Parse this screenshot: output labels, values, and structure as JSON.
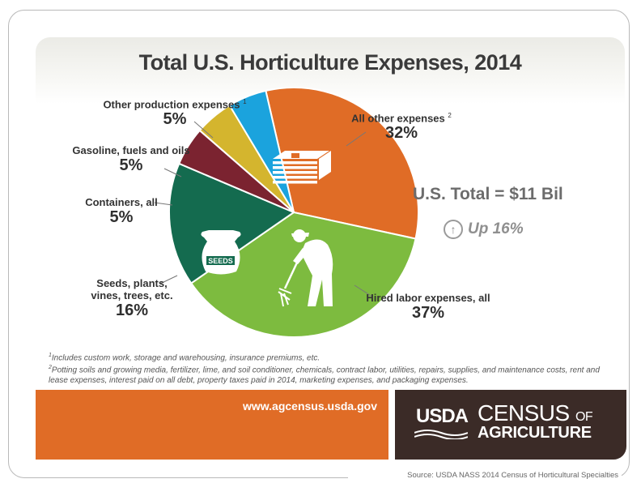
{
  "title": "Total U.S. Horticulture Expenses, 2014",
  "total_label": "U.S. Total = $11 Bil",
  "change_label": "Up 16%",
  "change_icon": "up-arrow-circle-icon",
  "chart_data": {
    "type": "pie",
    "title": "Total U.S. Horticulture Expenses, 2014",
    "slices": [
      {
        "label": "All other expenses",
        "note": "2",
        "value": 32,
        "value_label": "32%",
        "color": "#e06c26"
      },
      {
        "label": "Hired labor expenses, all",
        "note": "",
        "value": 37,
        "value_label": "37%",
        "color": "#7dbb3f"
      },
      {
        "label": "Seeds, plants, vines, trees, etc.",
        "note": "",
        "value": 16,
        "value_label": "16%",
        "color": "#146b4f"
      },
      {
        "label": "Containers, all",
        "note": "",
        "value": 5,
        "value_label": "5%",
        "color": "#7b2330"
      },
      {
        "label": "Gasoline, fuels and oils",
        "note": "",
        "value": 5,
        "value_label": "5%",
        "color": "#d4b52e"
      },
      {
        "label": "Other production expenses",
        "note": "1",
        "value": 5,
        "value_label": "5%",
        "color": "#1ba3dd"
      }
    ]
  },
  "labels": {
    "other_production": {
      "line1": "Other production expenses",
      "sup": "1",
      "pct": "5%"
    },
    "all_other": {
      "line1": "All other expenses",
      "sup": "2",
      "pct": "32%"
    },
    "gasoline": {
      "line1": "Gasoline, fuels and oils",
      "pct": "5%"
    },
    "containers": {
      "line1": "Containers, all",
      "pct": "5%"
    },
    "seeds": {
      "line1": "Seeds, plants,",
      "line2": "vines, trees, etc.",
      "pct": "16%"
    },
    "hired_labor": {
      "line1": "Hired labor expenses, all",
      "pct": "37%"
    }
  },
  "seed_bag_text": "SEEDS",
  "footnotes": {
    "n1_mark": "1",
    "n1": "Includes custom work, storage and warehousing, insurance premiums, etc.",
    "n2_mark": "2",
    "n2": "Potting soils and growing media, fertilizer, lime, and soil conditioner, chemicals, contract labor, utilities, repairs, supplies, and maintenance costs, rent and lease expenses, interest paid on all debt, property taxes paid in 2014, marketing expenses, and packaging expenses."
  },
  "url": "www.agcensus.usda.gov",
  "brand": {
    "usda": "USDA",
    "census": "CENSUS",
    "of": "OF",
    "agriculture": "AGRICULTURE"
  },
  "source": "Source: USDA NASS 2014 Census of Horticultural Specialties"
}
